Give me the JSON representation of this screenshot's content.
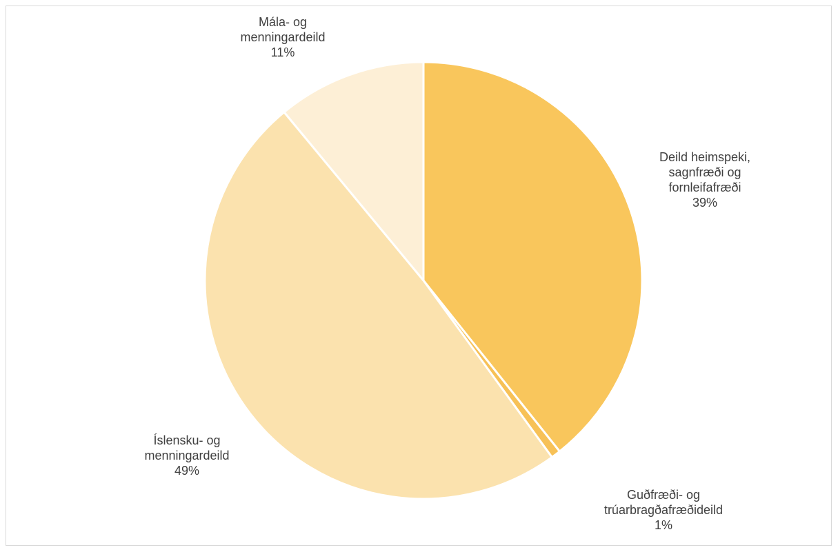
{
  "chart_data": {
    "type": "pie",
    "title": "",
    "start_angle_deg": 0,
    "direction": "clockwise",
    "slices": [
      {
        "label_lines": [
          "Deild heimspeki,",
          "sagnfræði og",
          "fornleifafræði"
        ],
        "percent_label": "39%",
        "value": 39.3,
        "color": "#F9C65C"
      },
      {
        "label_lines": [
          "Guðfræði- og",
          "trúarbragðafræðideild"
        ],
        "percent_label": "1%",
        "value": 0.7,
        "color": "#F7C157"
      },
      {
        "label_lines": [
          "Íslensku- og",
          "menningardeild"
        ],
        "percent_label": "49%",
        "value": 49.0,
        "color": "#FBE2AE"
      },
      {
        "label_lines": [
          "Mála- og",
          "menningardeild"
        ],
        "percent_label": "11%",
        "value": 11.0,
        "color": "#FDEFD6"
      }
    ],
    "slice_border_color": "#ffffff",
    "label_color": "#404040",
    "legend": "none"
  }
}
